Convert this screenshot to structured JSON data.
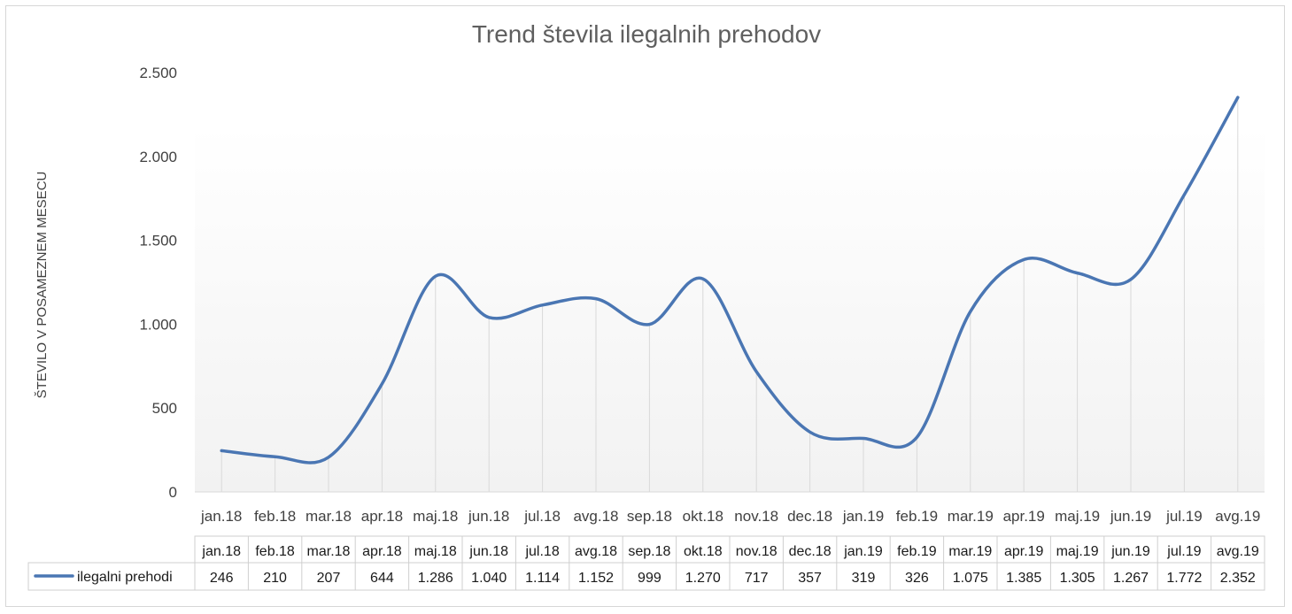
{
  "colors": {
    "line": "#4a76b3",
    "grid": "#d9d9d9",
    "plot_bg_top": "#ffffff",
    "plot_bg_bottom": "#f2f2f2"
  },
  "chart_data": {
    "type": "line",
    "title": "Trend števila ilegalnih prehodov",
    "ylabel": "ŠTEVILO V POSAMEZNEM MESECU",
    "xlabel": "",
    "categories": [
      "jan.18",
      "feb.18",
      "mar.18",
      "apr.18",
      "maj.18",
      "jun.18",
      "jul.18",
      "avg.18",
      "sep.18",
      "okt.18",
      "nov.18",
      "dec.18",
      "jan.19",
      "feb.19",
      "mar.19",
      "apr.19",
      "maj.19",
      "jun.19",
      "jul.19",
      "avg.19"
    ],
    "series": [
      {
        "name": "ilegalni prehodi",
        "values": [
          246,
          210,
          207,
          644,
          1286,
          1040,
          1114,
          1152,
          999,
          1270,
          717,
          357,
          319,
          326,
          1075,
          1385,
          1305,
          1267,
          1772,
          2352
        ]
      }
    ],
    "value_labels": [
      "246",
      "210",
      "207",
      "644",
      "1.286",
      "1.040",
      "1.114",
      "1.152",
      "999",
      "1.270",
      "717",
      "357",
      "319",
      "326",
      "1.075",
      "1.385",
      "1.305",
      "1.267",
      "1.772",
      "2.352"
    ],
    "ylim": [
      0,
      2500
    ],
    "yticks": [
      0,
      500,
      1000,
      1500,
      2000,
      2500
    ],
    "ytick_labels": [
      "0",
      "500",
      "1.000",
      "1.500",
      "2.000",
      "2.500"
    ],
    "grid": "vertical drop lines",
    "smoothed": true,
    "data_table": true
  }
}
